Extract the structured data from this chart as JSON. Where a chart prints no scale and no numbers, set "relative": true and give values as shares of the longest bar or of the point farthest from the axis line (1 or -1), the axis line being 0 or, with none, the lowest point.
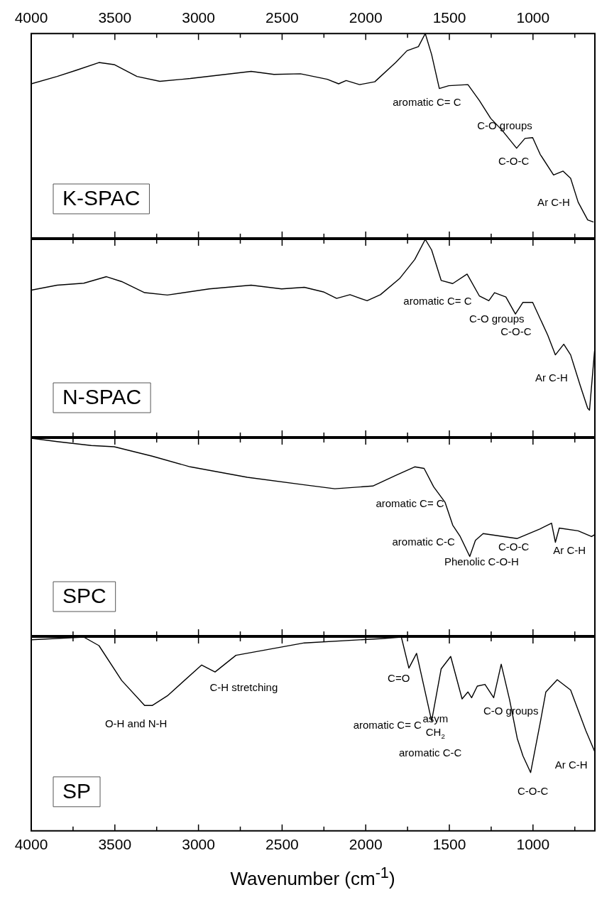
{
  "chart_data": [
    {
      "type": "line",
      "title": "K-SPAC",
      "relative": true,
      "xlim": [
        4000,
        630
      ],
      "xticks": [
        4000,
        {
          "value": 3750,
          "label": null
        },
        3500,
        {
          "value": 3250,
          "label": null
        },
        3000,
        {
          "value": 2750,
          "label": null
        },
        2500,
        {
          "value": 2250,
          "label": null
        },
        2000,
        {
          "value": 1750,
          "label": null
        },
        1500,
        {
          "value": 1250,
          "label": null
        },
        1000,
        {
          "value": 750,
          "label": null
        }
      ],
      "x": [
        4000,
        3845,
        3732,
        3595,
        3504,
        3368,
        3231,
        3049,
        2685,
        2549,
        2390,
        2230,
        2162,
        2117,
        2037,
        1946,
        1821,
        1753,
        1685,
        1644,
        1606,
        1560,
        1503,
        1389,
        1321,
        1253,
        1184,
        1098,
        1048,
        1002,
        957,
        877,
        820,
        775,
        730,
        673,
        638
      ],
      "series": [
        {
          "color": "#000000",
          "values": [
            0.754,
            0.79,
            0.82,
            0.858,
            0.848,
            0.79,
            0.766,
            0.78,
            0.815,
            0.8,
            0.803,
            0.776,
            0.754,
            0.77,
            0.75,
            0.764,
            0.858,
            0.916,
            0.936,
            1.0,
            0.897,
            0.731,
            0.745,
            0.75,
            0.673,
            0.585,
            0.526,
            0.439,
            0.487,
            0.491,
            0.409,
            0.308,
            0.327,
            0.292,
            0.175,
            0.088,
            0.078
          ]
        }
      ],
      "annotations": [
        "aromatic C= C",
        "C-O groups",
        "C-O-C",
        "Ar C-H"
      ]
    },
    {
      "type": "line",
      "title": "N-SPAC",
      "relative": true,
      "xlim": [
        4000,
        630
      ],
      "tick_labels": false,
      "xticks": [
        4000,
        {
          "value": 3750,
          "label": null
        },
        3500,
        {
          "value": 3250,
          "label": null
        },
        3000,
        {
          "value": 2750,
          "label": null
        },
        2500,
        {
          "value": 2250,
          "label": null
        },
        2000,
        {
          "value": 1750,
          "label": null
        },
        1500,
        {
          "value": 1250,
          "label": null
        },
        1000,
        {
          "value": 750,
          "label": null
        }
      ],
      "x": [
        4000,
        3845,
        3686,
        3550,
        3459,
        3322,
        3186,
        2936,
        2685,
        2503,
        2367,
        2253,
        2174,
        2094,
        1992,
        1912,
        1798,
        1707,
        1644,
        1606,
        1549,
        1480,
        1394,
        1321,
        1264,
        1230,
        1162,
        1105,
        1060,
        1002,
        912,
        866,
        816,
        775,
        718,
        673,
        662,
        632
      ],
      "series": [
        {
          "color": "#000000",
          "values": [
            0.743,
            0.768,
            0.778,
            0.811,
            0.786,
            0.73,
            0.718,
            0.749,
            0.768,
            0.749,
            0.757,
            0.734,
            0.701,
            0.72,
            0.689,
            0.72,
            0.801,
            0.898,
            1.0,
            0.946,
            0.792,
            0.776,
            0.824,
            0.714,
            0.689,
            0.73,
            0.708,
            0.622,
            0.681,
            0.681,
            0.515,
            0.415,
            0.469,
            0.415,
            0.261,
            0.145,
            0.135,
            0.434
          ]
        }
      ],
      "annotations": [
        "aromatic C= C",
        "C-O groups",
        "C-O-C",
        "Ar C-H"
      ]
    },
    {
      "type": "line",
      "title": "SPC",
      "relative": true,
      "xlim": [
        4000,
        630
      ],
      "tick_labels": false,
      "xticks": [
        4000,
        {
          "value": 3750,
          "label": null
        },
        3500,
        {
          "value": 3250,
          "label": null
        },
        3000,
        {
          "value": 2750,
          "label": null
        },
        2500,
        {
          "value": 2250,
          "label": null
        },
        2000,
        {
          "value": 1750,
          "label": null
        },
        1500,
        {
          "value": 1250,
          "label": null
        },
        1000,
        {
          "value": 750,
          "label": null
        }
      ],
      "x": [
        4000,
        3845,
        3641,
        3504,
        3277,
        3049,
        2708,
        2367,
        2185,
        1958,
        1821,
        1707,
        1651,
        1594,
        1526,
        1480,
        1435,
        1378,
        1344,
        1298,
        1094,
        957,
        889,
        866,
        843,
        730,
        650,
        630
      ],
      "series": [
        {
          "color": "#000000",
          "values": [
            1.0,
            0.983,
            0.963,
            0.957,
            0.909,
            0.855,
            0.802,
            0.764,
            0.744,
            0.758,
            0.812,
            0.855,
            0.847,
            0.754,
            0.676,
            0.56,
            0.502,
            0.401,
            0.483,
            0.517,
            0.492,
            0.541,
            0.57,
            0.473,
            0.545,
            0.531,
            0.502,
            0.512
          ]
        }
      ],
      "annotations": [
        "aromatic C= C",
        "aromatic C-C",
        "Phenolic C-O-H",
        "C-O-C",
        "Ar C-H"
      ]
    },
    {
      "type": "line",
      "title": "SP",
      "relative": true,
      "xlim": [
        4000,
        630
      ],
      "xlabel": "Wavenumber (cm$^{-1}$)",
      "xticks": [
        4000,
        {
          "value": 3750,
          "label": null
        },
        3500,
        {
          "value": 3250,
          "label": null
        },
        3000,
        {
          "value": 2750,
          "label": null
        },
        2500,
        {
          "value": 2250,
          "label": null
        },
        2000,
        {
          "value": 1750,
          "label": null
        },
        1500,
        {
          "value": 1250,
          "label": null
        },
        1000,
        {
          "value": 750,
          "label": null
        }
      ],
      "x": [
        4000,
        3686,
        3595,
        3459,
        3322,
        3277,
        3186,
        2981,
        2901,
        2776,
        2367,
        1912,
        1787,
        1742,
        1696,
        1606,
        1549,
        1492,
        1424,
        1389,
        1367,
        1333,
        1287,
        1235,
        1190,
        1140,
        1094,
        1060,
        1014,
        957,
        923,
        855,
        775,
        684,
        630
      ],
      "series": [
        {
          "color": "#000000",
          "values": [
            0.986,
            1.0,
            0.956,
            0.776,
            0.647,
            0.647,
            0.697,
            0.856,
            0.82,
            0.906,
            0.97,
            0.992,
            1.0,
            0.84,
            0.916,
            0.567,
            0.836,
            0.9,
            0.681,
            0.717,
            0.687,
            0.747,
            0.756,
            0.687,
            0.86,
            0.677,
            0.477,
            0.387,
            0.301,
            0.557,
            0.717,
            0.78,
            0.727,
            0.517,
            0.407
          ]
        }
      ],
      "annotations": [
        "O-H and N-H",
        "C-H stretching",
        "C=O",
        "aromatic C= C",
        "asym\nCH$_{2}$",
        "aromatic C-C",
        "C-O groups",
        "C-O-C",
        "Ar C-H"
      ]
    }
  ]
}
